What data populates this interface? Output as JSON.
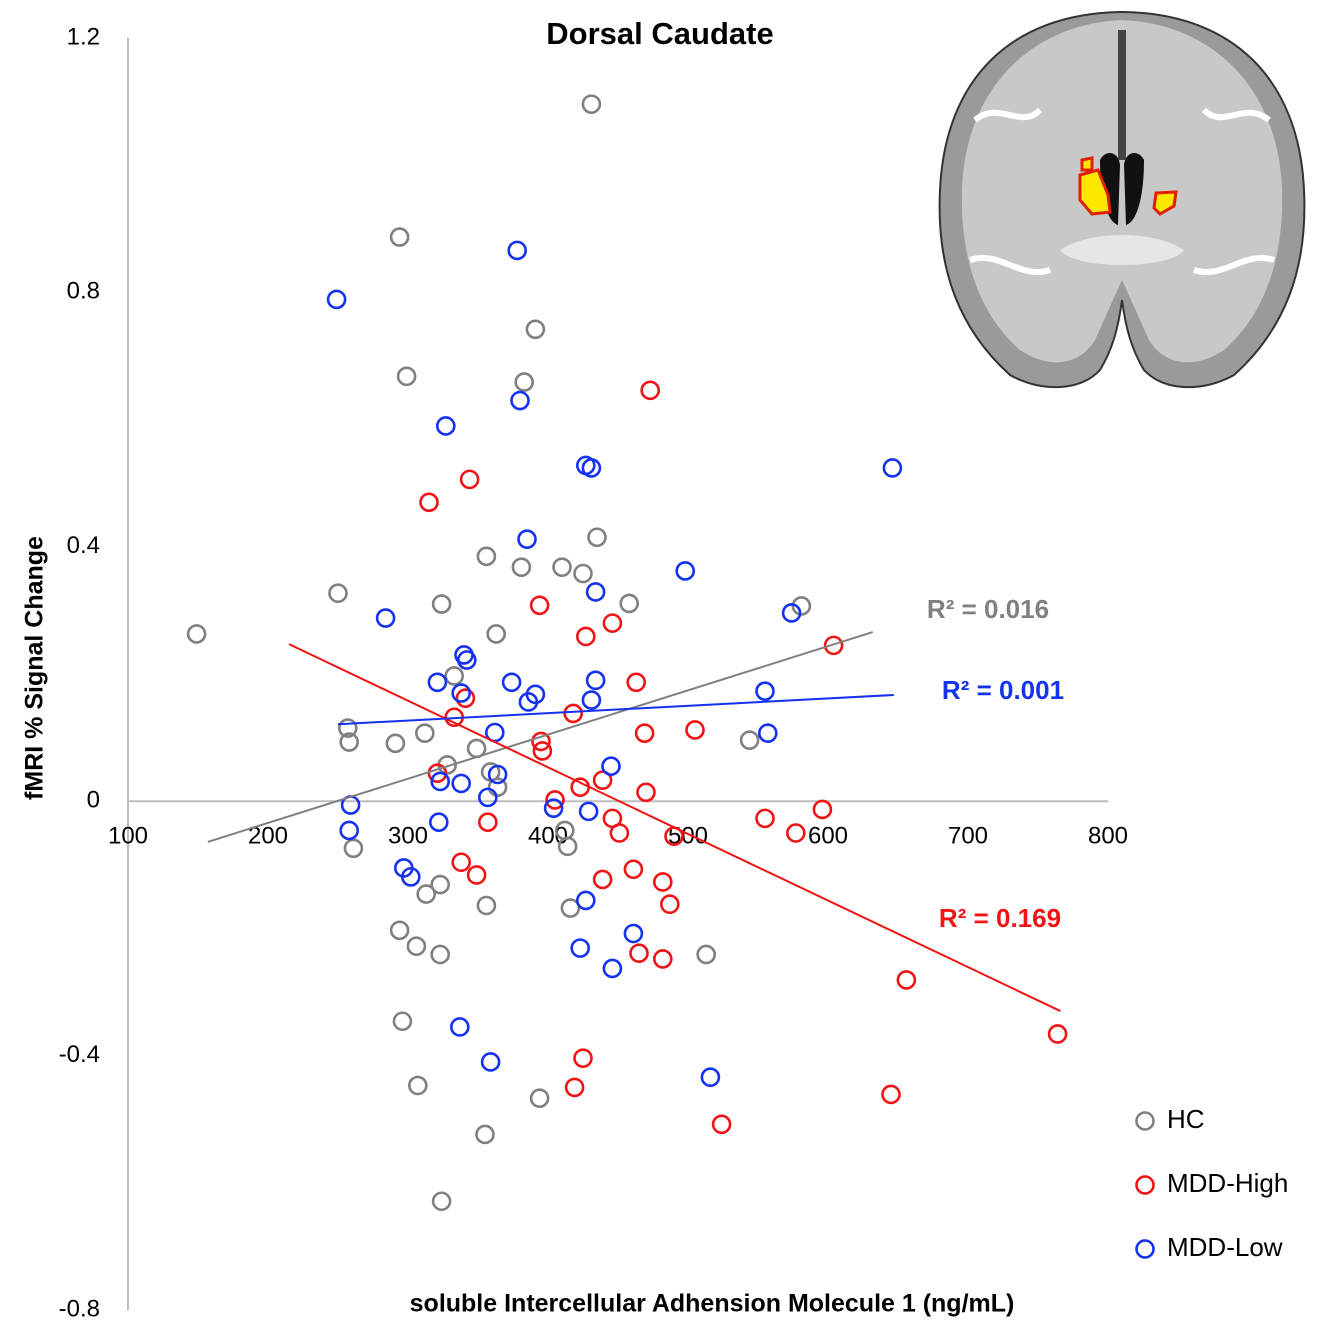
{
  "chart_data": {
    "type": "scatter",
    "title": "Dorsal Caudate",
    "x_label": "soluble Intercellular Adhension Molecule 1 (ng/mL)",
    "y_label": "fMRI % Signal Change",
    "xlim": [
      100,
      800
    ],
    "ylim": [
      -0.8,
      1.2
    ],
    "xticks": [
      100,
      200,
      300,
      400,
      500,
      600,
      700,
      800
    ],
    "yticks": [
      -0.8,
      -0.4,
      0,
      0.4,
      0.8,
      1.2
    ],
    "legend": "bottom-right",
    "series": [
      {
        "name": "HC",
        "color": "#808080",
        "x": [
          431,
          294,
          391,
          299,
          383,
          149,
          250,
          324,
          356,
          381,
          410,
          425,
          435,
          458,
          363,
          581,
          257,
          258,
          291,
          312,
          333,
          349,
          328,
          359,
          364,
          544,
          412,
          414,
          261,
          323,
          313,
          356,
          416,
          294,
          306,
          323,
          513,
          296,
          307,
          394,
          355,
          324
        ],
        "y": [
          1.096,
          0.887,
          0.742,
          0.668,
          0.659,
          0.263,
          0.327,
          0.31,
          0.385,
          0.368,
          0.368,
          0.358,
          0.415,
          0.311,
          0.263,
          0.307,
          0.115,
          0.093,
          0.091,
          0.107,
          0.197,
          0.083,
          0.057,
          0.046,
          0.022,
          0.096,
          -0.046,
          -0.071,
          -0.074,
          -0.131,
          -0.146,
          -0.164,
          -0.168,
          -0.203,
          -0.228,
          -0.241,
          -0.241,
          -0.346,
          -0.447,
          -0.467,
          -0.524,
          -0.629
        ],
        "trendline": {
          "x": [
            157,
            632
          ],
          "y": [
            -0.064,
            0.266
          ],
          "label": "R² = 0.016"
        }
      },
      {
        "name": "MDD-High",
        "color": "#f01414",
        "x": [
          473,
          344,
          315,
          394,
          427,
          446,
          604,
          463,
          341,
          333,
          418,
          469,
          505,
          395,
          396,
          321,
          405,
          439,
          423,
          470,
          357,
          446,
          451,
          490,
          555,
          577,
          596,
          338,
          349,
          439,
          461,
          482,
          487,
          465,
          482,
          656,
          425,
          419,
          645,
          524,
          764
        ],
        "y": [
          0.646,
          0.506,
          0.47,
          0.308,
          0.259,
          0.28,
          0.245,
          0.187,
          0.162,
          0.132,
          0.138,
          0.107,
          0.112,
          0.094,
          0.079,
          0.044,
          0.002,
          0.033,
          0.022,
          0.014,
          -0.033,
          -0.027,
          -0.05,
          -0.055,
          -0.027,
          -0.05,
          -0.013,
          -0.096,
          -0.116,
          -0.123,
          -0.107,
          -0.127,
          -0.162,
          -0.239,
          -0.248,
          -0.281,
          -0.404,
          -0.45,
          -0.461,
          -0.508,
          -0.366
        ],
        "trendline": {
          "x": [
            215,
            766
          ],
          "y": [
            0.247,
            -0.33
          ],
          "label": "R² = 0.169"
        }
      },
      {
        "name": "MDD-Low",
        "color": "#1432f0",
        "x": [
          249,
          378,
          380,
          327,
          427,
          431,
          646,
          385,
          498,
          434,
          284,
          574,
          340,
          342,
          321,
          374,
          434,
          338,
          391,
          386,
          431,
          555,
          362,
          557,
          445,
          364,
          357,
          323,
          338,
          259,
          258,
          322,
          404,
          429,
          297,
          302,
          427,
          461,
          423,
          446,
          337,
          359,
          516
        ],
        "y": [
          0.789,
          0.866,
          0.63,
          0.59,
          0.528,
          0.524,
          0.524,
          0.412,
          0.362,
          0.329,
          0.288,
          0.296,
          0.23,
          0.222,
          0.187,
          0.187,
          0.19,
          0.17,
          0.168,
          0.156,
          0.159,
          0.173,
          0.108,
          0.107,
          0.055,
          0.042,
          0.006,
          0.031,
          0.028,
          -0.006,
          -0.046,
          -0.033,
          -0.011,
          -0.016,
          -0.105,
          -0.119,
          -0.156,
          -0.208,
          -0.231,
          -0.263,
          -0.355,
          -0.41,
          -0.434
        ],
        "trendline": {
          "x": [
            250,
            647
          ],
          "y": [
            0.121,
            0.167
          ],
          "label": "R² = 0.001"
        }
      }
    ]
  }
}
